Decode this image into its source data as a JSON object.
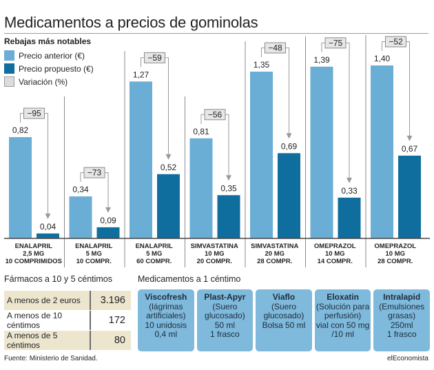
{
  "title": "Medicamentos a precios de gominolas",
  "chart_data": {
    "type": "bar",
    "subtitle": "Rebajas más notables",
    "legend": [
      {
        "label": "Precio anterior (€)",
        "color": "#6aaed6"
      },
      {
        "label": "Precio propuesto (€)",
        "color": "#0f6e9e"
      },
      {
        "label": "Variación (%)",
        "color": "#dcdcdc"
      }
    ],
    "categories": [
      [
        "ENALAPRIL",
        "2,5 MG",
        "10 COMPRIMIDOS"
      ],
      [
        "ENALAPRIL",
        "5 MG",
        "10 COMPR."
      ],
      [
        "ENALAPRIL",
        "5 MG",
        "60 COMPR."
      ],
      [
        "SIMVASTATINA",
        "10 MG",
        "20 COMPR."
      ],
      [
        "SIMVASTATINA",
        "20 MG",
        "28 COMPR."
      ],
      [
        "OMEPRAZOL",
        "10 MG",
        "14 COMPR."
      ],
      [
        "OMEPRAZOL",
        "10 MG",
        "28 COMPR."
      ]
    ],
    "series": [
      {
        "name": "Precio anterior (€)",
        "values": [
          0.82,
          0.34,
          1.27,
          0.81,
          1.35,
          1.39,
          1.4
        ],
        "labels": [
          "0,82",
          "0,34",
          "1,27",
          "0,81",
          "1,35",
          "1,39",
          "1,40"
        ]
      },
      {
        "name": "Precio propuesto (€)",
        "values": [
          0.04,
          0.09,
          0.52,
          0.35,
          0.69,
          0.33,
          0.67
        ],
        "labels": [
          "0,04",
          "0,09",
          "0,52",
          "0,35",
          "0,69",
          "0,33",
          "0,67"
        ]
      }
    ],
    "variation_labels": [
      "−95",
      "−73",
      "−59",
      "−56",
      "−48",
      "−75",
      "−52"
    ],
    "ylim": [
      0,
      1.45
    ]
  },
  "cheap_section": {
    "title": "Fármacos a 10 y 5 céntimos",
    "rows": [
      {
        "label": "A menos de 2 euros",
        "value": "3.196"
      },
      {
        "label": "A menos de 10 céntimos",
        "value": "172"
      },
      {
        "label": "A menos de 5 céntimos",
        "value": "80"
      }
    ]
  },
  "one_cent_section": {
    "title": "Medicamentos a 1 céntimo",
    "cards": [
      {
        "name": "Viscofresh",
        "lines": [
          "(lágrimas",
          "artificiales)",
          "10 unidosis",
          "0,4 ml"
        ]
      },
      {
        "name": "Plast-Apyr",
        "lines": [
          "(Suero",
          "glucosado)",
          "50 ml",
          "1 frasco"
        ]
      },
      {
        "name": "Viaflo",
        "lines": [
          "(Suero",
          "glucosado)",
          "Bolsa 50 ml"
        ]
      },
      {
        "name": "Eloxatin",
        "lines": [
          "(Solución para",
          "perfusión)",
          "vial con 50 mg",
          "/10 ml"
        ]
      },
      {
        "name": "Intralapid",
        "lines": [
          "(Emulsiones",
          "grasas)",
          "250ml",
          "1 frasco"
        ]
      }
    ]
  },
  "footer": {
    "source": "Fuente: Ministerio de Sanidad.",
    "brand": "elEconomista"
  }
}
